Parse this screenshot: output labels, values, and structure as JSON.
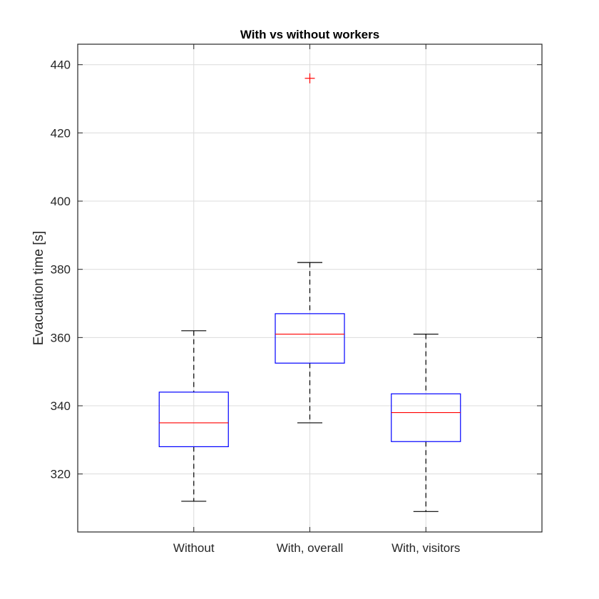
{
  "chart_data": {
    "type": "box",
    "title": "With vs without workers",
    "xlabel": "",
    "ylabel": "Evacuation time [s]",
    "ylim": [
      303,
      446
    ],
    "yticks": [
      320,
      340,
      360,
      380,
      400,
      420,
      440
    ],
    "grid": true,
    "categories": [
      "Without",
      "With, overall",
      "With, visitors"
    ],
    "boxes": [
      {
        "category": "Without",
        "whisker_low": 312,
        "q1": 328,
        "median": 335,
        "q3": 344,
        "whisker_high": 362,
        "outliers": []
      },
      {
        "category": "With, overall",
        "whisker_low": 335,
        "q1": 352.5,
        "median": 361,
        "q3": 367,
        "whisker_high": 382,
        "outliers": [
          436
        ]
      },
      {
        "category": "With, visitors",
        "whisker_low": 309,
        "q1": 329.5,
        "median": 338,
        "q3": 343.5,
        "whisker_high": 361,
        "outliers": []
      }
    ],
    "colors": {
      "box": "#0000ff",
      "median": "#ff0000",
      "whisker": "#000000",
      "outlier": "#ff0000",
      "grid": "#dcdcdc",
      "axis": "#262626"
    }
  }
}
